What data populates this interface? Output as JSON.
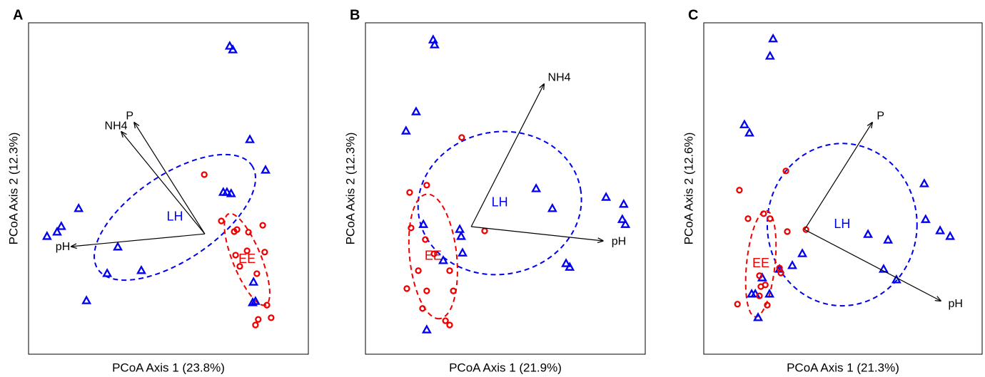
{
  "chart_data": [
    {
      "type": "scatter",
      "panel_label": "A",
      "x_label": "PCoA Axis 1 (23.8%)",
      "y_label": "PCoA Axis 2 (12.3%)",
      "xlim": [
        0,
        100
      ],
      "ylim": [
        0,
        100
      ],
      "series": [
        {
          "name": "LH",
          "color": "#0000ee",
          "marker": "triangle",
          "x": [
            71.9,
            73.0,
            79.1,
            84.7,
            69.6,
            70.9,
            72.4,
            17.9,
            11.7,
            10.2,
            6.6,
            31.9,
            28.1,
            40.3,
            20.7,
            80.4,
            81.1,
            80.1
          ],
          "y": [
            92.9,
            91.8,
            64.7,
            55.5,
            48.8,
            48.8,
            48.4,
            43.9,
            38.5,
            36.8,
            35.5,
            32.3,
            24.3,
            25.2,
            16.1,
            21.7,
            15.9,
            15.5
          ],
          "ellipse": {
            "cx": 52.3,
            "cy": 41.3,
            "rx": 33.2,
            "ry": 15.3,
            "angle": -34
          }
        },
        {
          "name": "EE",
          "color": "#ee0000",
          "marker": "circle",
          "x": [
            62.8,
            68.9,
            73.5,
            74.5,
            78.6,
            83.7,
            84.4,
            78.1,
            74.0,
            75.5,
            81.6,
            85.2,
            86.7,
            82.1,
            81.1
          ],
          "y": [
            54.2,
            40.2,
            37.0,
            37.6,
            36.8,
            38.9,
            30.8,
            31.2,
            29.9,
            26.5,
            24.3,
            14.8,
            11.0,
            10.5,
            8.8
          ],
          "ellipse": {
            "cx": 78.1,
            "cy": 28.6,
            "rx": 17.6,
            "ry": 5.1,
            "angle": 68
          }
        }
      ],
      "vector_origin": [
        63.0,
        36.3
      ],
      "vectors": [
        {
          "label": "pH",
          "x": 15.3,
          "y": 32.5
        },
        {
          "label": "NH4",
          "x": 33.2,
          "y": 67.1
        },
        {
          "label": "P",
          "x": 37.8,
          "y": 69.9
        }
      ]
    },
    {
      "type": "scatter",
      "panel_label": "B",
      "x_label": "PCoA Axis 1 (21.9%)",
      "y_label": "PCoA Axis 2 (12.3%)",
      "xlim": [
        0,
        100
      ],
      "ylim": [
        0,
        100
      ],
      "series": [
        {
          "name": "LH",
          "color": "#0000ee",
          "marker": "triangle",
          "x": [
            24.2,
            24.7,
            18.1,
            14.5,
            61.0,
            66.8,
            86.0,
            92.3,
            91.8,
            92.9,
            20.7,
            33.7,
            34.2,
            34.7,
            27.8,
            71.7,
            73.0,
            21.9
          ],
          "y": [
            94.8,
            93.3,
            73.1,
            67.3,
            49.9,
            43.9,
            47.3,
            45.2,
            40.6,
            39.1,
            39.1,
            37.6,
            35.5,
            30.5,
            28.2,
            27.3,
            26.2,
            7.3
          ],
          "ellipse": {
            "cx": 48.0,
            "cy": 45.6,
            "rx": 29.3,
            "ry": 25.5,
            "angle": -10
          }
        },
        {
          "name": "EE",
          "color": "#ee0000",
          "marker": "circle",
          "x": [
            34.4,
            15.8,
            21.9,
            16.3,
            21.4,
            42.6,
            24.5,
            18.9,
            30.1,
            14.8,
            21.9,
            31.4,
            20.4,
            28.6,
            30.1
          ],
          "y": [
            65.4,
            48.8,
            51.0,
            38.1,
            34.6,
            37.2,
            30.3,
            25.2,
            25.2,
            19.8,
            19.1,
            19.1,
            13.8,
            10.1,
            8.8
          ],
          "ellipse": {
            "cx": 24.2,
            "cy": 29.5,
            "rx": 22.4,
            "ry": 8.4,
            "angle": 84
          }
        }
      ],
      "vector_origin": [
        37.8,
        38.5
      ],
      "vectors": [
        {
          "label": "pH",
          "x": 84.9,
          "y": 34.2
        },
        {
          "label": "NH4",
          "x": 63.8,
          "y": 81.5
        }
      ]
    },
    {
      "type": "scatter",
      "panel_label": "C",
      "x_label": "PCoA Axis 1 (21.3%)",
      "y_label": "PCoA Axis 2 (12.6%)",
      "xlim": [
        0,
        100
      ],
      "ylim": [
        0,
        100
      ],
      "series": [
        {
          "name": "LH",
          "color": "#0000ee",
          "marker": "triangle",
          "x": [
            24.9,
            23.8,
            14.6,
            16.4,
            79.2,
            79.7,
            84.9,
            88.5,
            59.0,
            66.2,
            35.4,
            31.8,
            27.2,
            21.0,
            64.6,
            69.2,
            18.5,
            17.2,
            23.6,
            19.5
          ],
          "y": [
            95.1,
            89.9,
            69.2,
            66.7,
            51.4,
            40.6,
            37.2,
            35.5,
            36.1,
            34.4,
            30.3,
            26.7,
            25.6,
            23.0,
            25.6,
            22.4,
            18.1,
            18.1,
            18.1,
            11.0
          ],
          "ellipse": {
            "cx": 49.7,
            "cy": 39.1,
            "rx": 26.9,
            "ry": 29.2,
            "angle": 0
          }
        },
        {
          "name": "EE",
          "color": "#ee0000",
          "marker": "circle",
          "x": [
            29.5,
            12.8,
            15.9,
            21.5,
            23.8,
            30.0,
            36.7,
            27.2,
            27.7,
            20.0,
            20.5,
            22.1,
            20.0,
            22.8,
            12.1
          ],
          "y": [
            55.3,
            49.5,
            40.9,
            42.4,
            40.9,
            37.0,
            37.6,
            26.0,
            24.5,
            23.7,
            20.4,
            20.9,
            17.6,
            14.8,
            15.1
          ],
          "ellipse": {
            "cx": 20.5,
            "cy": 27.3,
            "rx": 19.2,
            "ry": 5.1,
            "angle": -84
          }
        }
      ],
      "vector_origin": [
        36.2,
        37.6
      ],
      "vectors": [
        {
          "label": "P",
          "x": 60.5,
          "y": 69.9
        },
        {
          "label": "pH",
          "x": 85.1,
          "y": 16.1
        }
      ]
    }
  ]
}
